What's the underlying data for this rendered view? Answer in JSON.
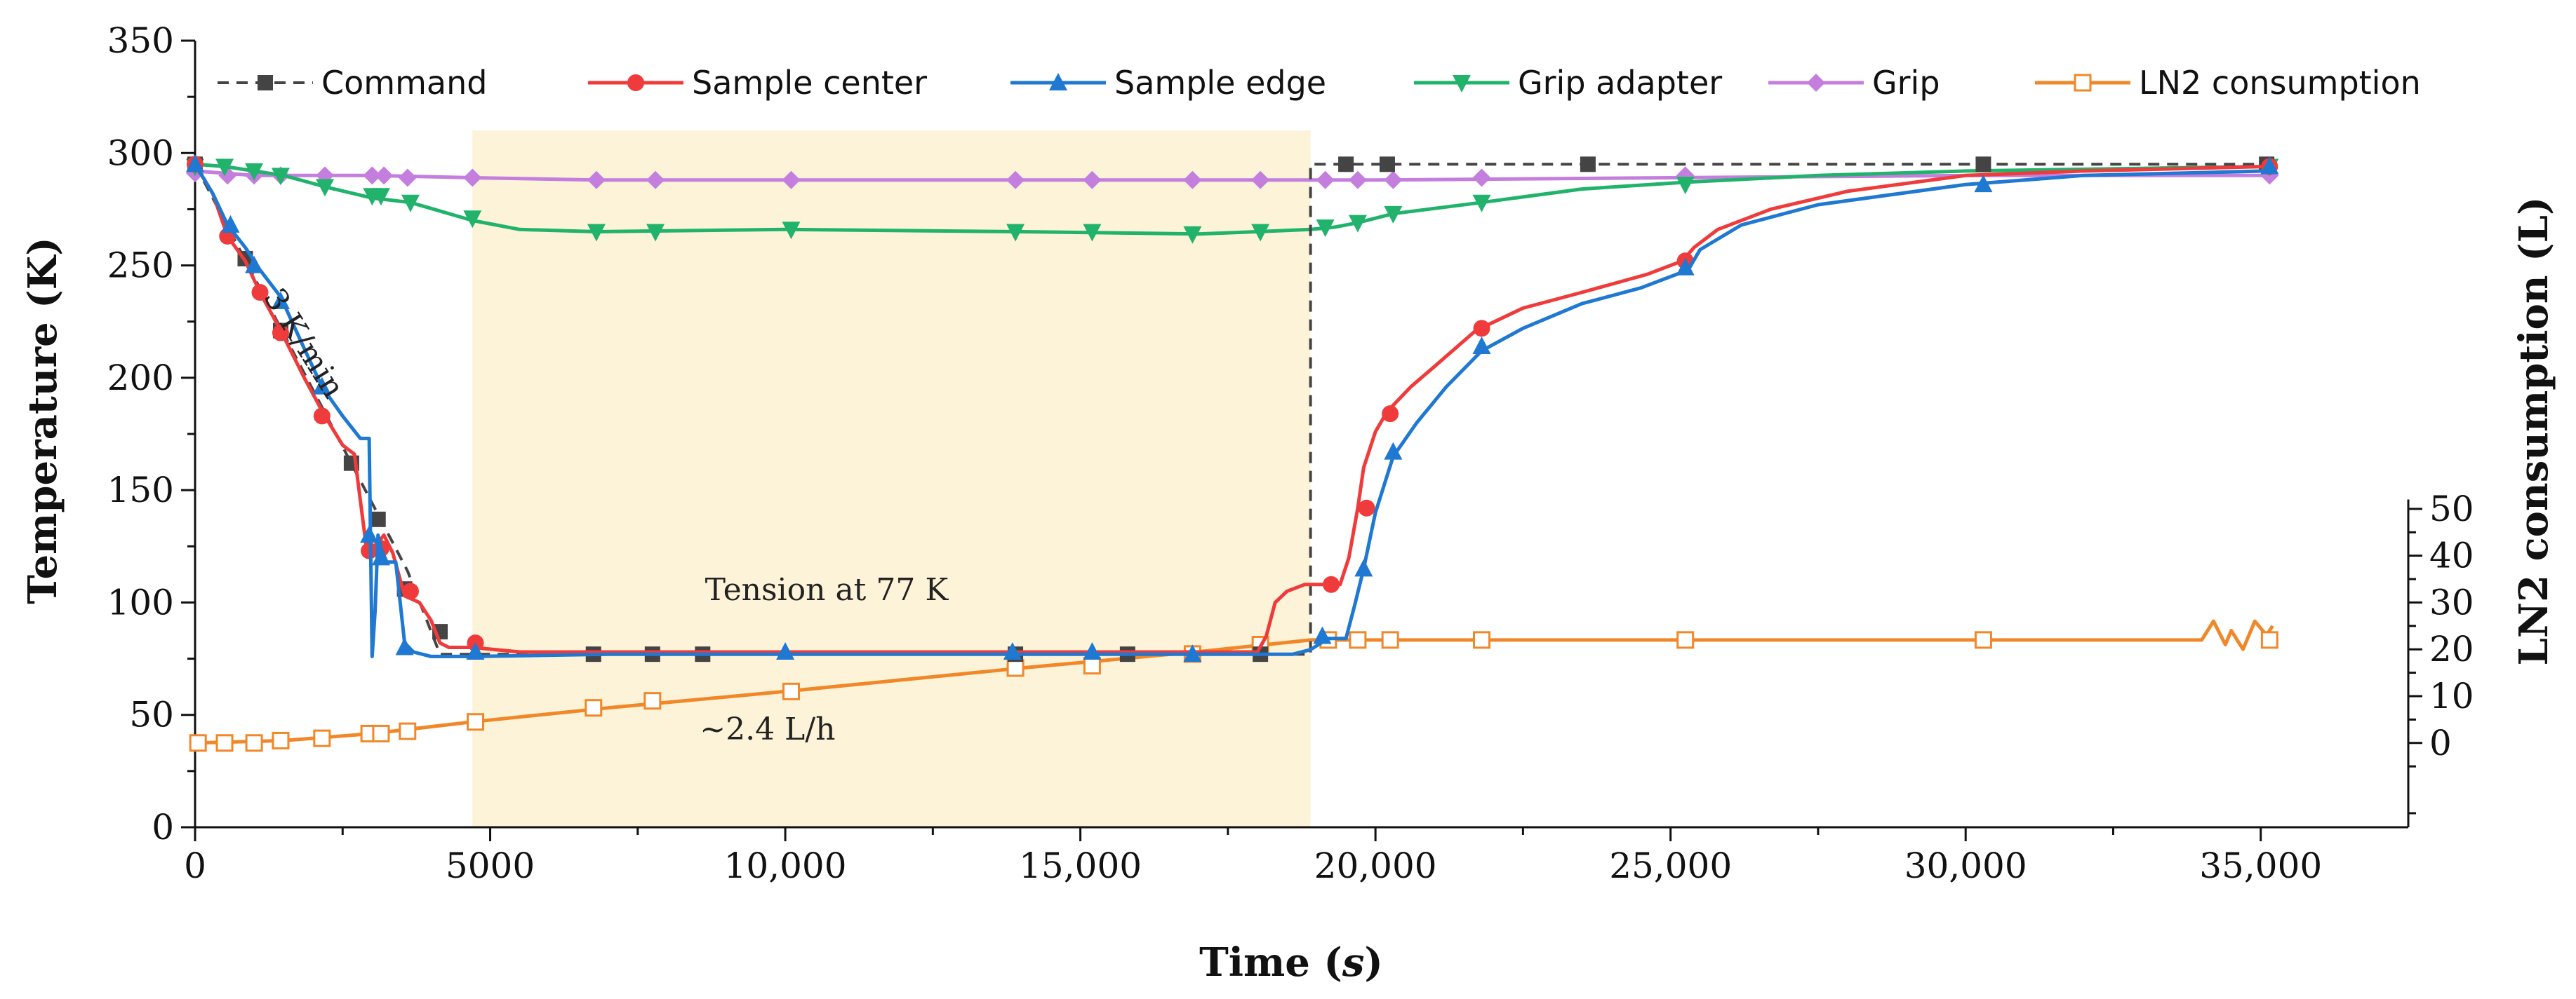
{
  "chart_data": {
    "type": "line",
    "xlabel_main": "Time (",
    "xlabel_ital": "s",
    "xlabel_close": ")",
    "ylabel": "Temperature (K)",
    "y2label": "LN2 consumption (L)",
    "xlim": [
      0,
      37500
    ],
    "ylim": [
      0,
      350
    ],
    "y2lim": [
      -18,
      150
    ],
    "x_ticks": [
      0,
      5000,
      10000,
      15000,
      20000,
      25000,
      30000,
      35000
    ],
    "x_tick_labels": [
      "0",
      "5000",
      "10,000",
      "15,000",
      "20,000",
      "25,000",
      "30,000",
      "35,000"
    ],
    "y_ticks": [
      0,
      50,
      100,
      150,
      200,
      250,
      300,
      350
    ],
    "y_tick_labels": [
      "0",
      "50",
      "100",
      "150",
      "200",
      "250",
      "300",
      "350"
    ],
    "y2_ticks": [
      0,
      10,
      20,
      30,
      40,
      50
    ],
    "y2_tick_labels": [
      "0",
      "10",
      "20",
      "30",
      "40",
      "50"
    ],
    "highlight_range": [
      4700,
      18900
    ],
    "annotations": [
      {
        "text": "3 K/min",
        "x": 1700,
        "y": 213,
        "rotate": 58
      },
      {
        "text": "Tension at 77 K",
        "x": 10700,
        "y": 101
      },
      {
        "text": "~2.4 L/h",
        "x": 9700,
        "y": 39
      }
    ],
    "series": [
      {
        "name": "Command",
        "color": "#444444",
        "marker": "square",
        "dashed": true,
        "axis": "left",
        "x": [
          0,
          3600,
          4150,
          4150,
          18900,
          18900,
          35100
        ],
        "y": [
          295,
          114,
          77,
          77,
          77,
          295,
          295
        ],
        "marker_x": [
          0,
          850,
          1450,
          2650,
          3100,
          3550,
          4150,
          6750,
          7750,
          8600,
          13900,
          15800,
          18050,
          19500,
          20200,
          23600,
          30300,
          35100
        ],
        "marker_y": [
          295,
          253,
          221,
          162,
          137,
          106,
          87,
          77,
          77,
          77,
          77,
          77,
          77,
          295,
          295,
          295,
          295,
          295
        ]
      },
      {
        "name": "Sample center",
        "color": "#ef3b3b",
        "marker": "circle",
        "dashed": false,
        "axis": "left",
        "x": [
          0,
          300,
          550,
          850,
          1100,
          1450,
          1850,
          2200,
          2500,
          2700,
          2900,
          3000,
          3200,
          3350,
          3550,
          3800,
          4000,
          4150,
          4300,
          4700,
          5500,
          7000,
          10000,
          14000,
          18000,
          18150,
          18300,
          18500,
          18800,
          19200,
          19400,
          19550,
          19700,
          19800,
          20000,
          20200,
          20600,
          21000,
          21700,
          22500,
          23500,
          24600,
          25200,
          25400,
          25800,
          26700,
          28000,
          30000,
          32000,
          35100
        ],
        "y": [
          295,
          282,
          263,
          252,
          238,
          221,
          200,
          183,
          170,
          166,
          125,
          123,
          130,
          122,
          103,
          100,
          92,
          82,
          80,
          80,
          78,
          78,
          78,
          78,
          78,
          85,
          100,
          105,
          108,
          108,
          108,
          120,
          142,
          160,
          176,
          185,
          196,
          205,
          221,
          231,
          238,
          246,
          252,
          258,
          266,
          275,
          283,
          290,
          292,
          294
        ],
        "marker_x": [
          0,
          550,
          1100,
          1450,
          2150,
          2950,
          3150,
          3650,
          4750,
          19250,
          19850,
          20250,
          21800,
          25250,
          35150
        ],
        "marker_y": [
          295,
          263,
          238,
          220,
          183,
          123,
          124,
          105,
          82,
          108,
          142,
          184,
          222,
          252,
          294
        ]
      },
      {
        "name": "Sample edge",
        "color": "#1f78d1",
        "marker": "triangle",
        "dashed": false,
        "axis": "left",
        "x": [
          0,
          300,
          550,
          850,
          1100,
          1450,
          1850,
          2150,
          2500,
          2800,
          2950,
          3000,
          3050,
          3100,
          3150,
          3250,
          3400,
          3550,
          3700,
          4000,
          4750,
          7000,
          10000,
          14000,
          18000,
          18600,
          18900,
          19200,
          19500,
          19650,
          19800,
          20000,
          20300,
          20700,
          21200,
          21800,
          22500,
          23500,
          24500,
          25300,
          25500,
          26200,
          27500,
          30000,
          32000,
          35100
        ],
        "y": [
          295,
          282,
          268,
          258,
          248,
          236,
          213,
          196,
          183,
          173,
          173,
          76,
          96,
          130,
          124,
          118,
          118,
          82,
          78,
          76,
          76,
          77,
          77,
          77,
          77,
          77,
          79,
          84,
          84,
          99,
          115,
          140,
          165,
          180,
          196,
          212,
          222,
          233,
          240,
          248,
          257,
          268,
          277,
          286,
          290,
          292
        ],
        "marker_x": [
          0,
          600,
          1000,
          1450,
          2150,
          2950,
          3150,
          3550,
          4750,
          10000,
          13850,
          15200,
          16900,
          19100,
          19800,
          20300,
          21800,
          25250,
          30300,
          35150
        ],
        "marker_y": [
          295,
          268,
          250,
          234,
          196,
          130,
          120,
          80,
          78,
          78,
          78,
          78,
          77,
          85,
          115,
          167,
          214,
          249,
          286,
          294
        ]
      },
      {
        "name": "Grip adapter",
        "color": "#21b36c",
        "marker": "triangle-down",
        "dashed": false,
        "axis": "left",
        "x": [
          0,
          500,
          1000,
          1500,
          2200,
          3000,
          3650,
          4700,
          5500,
          6800,
          10000,
          14000,
          17000,
          18000,
          18900,
          19300,
          19700,
          20300,
          21800,
          23500,
          25250,
          27500,
          30000,
          35100
        ],
        "y": [
          295,
          294,
          292,
          290,
          285,
          280,
          278,
          270,
          266,
          265,
          266,
          265,
          264,
          265,
          266,
          267,
          269,
          273,
          278,
          284,
          287,
          290,
          292,
          294
        ],
        "marker_x": [
          0,
          500,
          1000,
          1450,
          2200,
          3000,
          3150,
          3650,
          4700,
          6800,
          7800,
          10100,
          13900,
          15200,
          16900,
          18050,
          19150,
          19700,
          20300,
          21800,
          25250,
          35150
        ],
        "marker_y": [
          294,
          294,
          292,
          290,
          285,
          281,
          281,
          278,
          271,
          265,
          265,
          266,
          265,
          265,
          264,
          265,
          267,
          269,
          273,
          278,
          286,
          294
        ]
      },
      {
        "name": "Grip",
        "color": "#c47ede",
        "marker": "diamond",
        "dashed": false,
        "axis": "left",
        "x": [
          0,
          1000,
          2000,
          3000,
          4700,
          6800,
          10000,
          15000,
          18900,
          20000,
          25000,
          30000,
          35100
        ],
        "y": [
          292,
          290,
          290,
          290,
          289,
          288,
          288,
          288,
          288,
          288,
          289,
          290,
          290
        ],
        "marker_x": [
          0,
          550,
          1000,
          1450,
          2200,
          3000,
          3200,
          3600,
          4700,
          6800,
          7800,
          10100,
          13900,
          15200,
          16900,
          18050,
          19150,
          19700,
          20300,
          21800,
          25250,
          35150
        ],
        "marker_y": [
          291,
          290,
          290,
          290,
          290,
          290,
          290,
          289,
          289,
          288,
          288,
          288,
          288,
          288,
          288,
          288,
          288,
          288,
          288,
          289,
          290,
          290
        ]
      },
      {
        "name": "LN2 consumption",
        "color": "#f0882a",
        "marker": "square-open",
        "dashed": false,
        "axis": "right",
        "x": [
          0,
          1500,
          3000,
          4700,
          7000,
          10000,
          14000,
          17000,
          18900,
          19200,
          20000,
          22000,
          25000,
          30000,
          34000,
          34200,
          34400,
          34500,
          34700,
          34900,
          35100,
          35200
        ],
        "y": [
          0,
          0.5,
          2,
          4.5,
          7.5,
          11,
          16,
          19.5,
          22,
          22,
          22,
          22,
          22,
          22,
          22,
          26,
          21,
          24,
          20,
          26,
          23,
          25
        ],
        "marker_x": [
          50,
          500,
          1000,
          1450,
          2150,
          2950,
          3150,
          3600,
          4750,
          6750,
          7750,
          10100,
          13900,
          15200,
          16900,
          18050,
          19200,
          19700,
          20250,
          21800,
          25250,
          30300,
          35150
        ],
        "marker_y": [
          0,
          0,
          0,
          0.5,
          1,
          2,
          2,
          2.5,
          4.5,
          7.5,
          9,
          11,
          16,
          16.5,
          19,
          21,
          22,
          22,
          22,
          22,
          22,
          22,
          22
        ]
      }
    ]
  }
}
